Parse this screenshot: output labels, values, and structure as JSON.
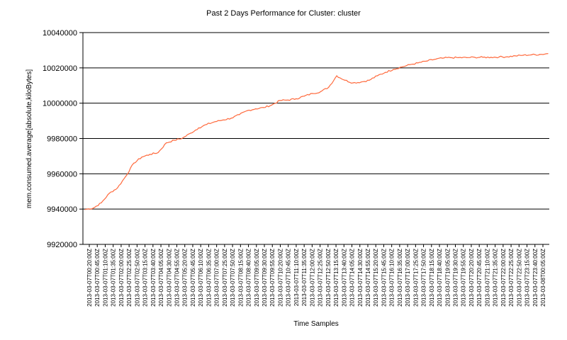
{
  "chart_data": {
    "type": "line",
    "title": "Past 2 Days Performance for Cluster: cluster",
    "xlabel": "Time Samples",
    "ylabel": "mem.consumed.average[absolute,kiloBytes]",
    "ylim": [
      9920000,
      10040000
    ],
    "yticks": [
      9920000,
      9940000,
      9960000,
      9980000,
      10000000,
      10020000,
      10040000
    ],
    "ytick_labels": [
      "9920000",
      "9940000",
      "9960000",
      "9980000",
      "10000000",
      "10020000",
      "10040000"
    ],
    "grid": true,
    "series_color": "#ff6a3d",
    "xtick_labels": [
      "2013-03-07T00:20:00Z",
      "2013-03-07T00:45:00Z",
      "2013-03-07T01:10:00Z",
      "2013-03-07T01:35:00Z",
      "2013-03-07T02:00:00Z",
      "2013-03-07T02:25:00Z",
      "2013-03-07T02:50:00Z",
      "2013-03-07T03:15:00Z",
      "2013-03-07T03:40:00Z",
      "2013-03-07T04:05:00Z",
      "2013-03-07T04:30:00Z",
      "2013-03-07T04:55:00Z",
      "2013-03-07T05:20:00Z",
      "2013-03-07T05:45:00Z",
      "2013-03-07T06:10:00Z",
      "2013-03-07T06:35:00Z",
      "2013-03-07T07:00:00Z",
      "2013-03-07T07:25:00Z",
      "2013-03-07T07:50:00Z",
      "2013-03-07T08:15:00Z",
      "2013-03-07T08:40:00Z",
      "2013-03-07T09:05:00Z",
      "2013-03-07T09:30:00Z",
      "2013-03-07T09:55:00Z",
      "2013-03-07T10:20:00Z",
      "2013-03-07T10:45:00Z",
      "2013-03-07T11:10:00Z",
      "2013-03-07T11:35:00Z",
      "2013-03-07T12:00:00Z",
      "2013-03-07T12:25:00Z",
      "2013-03-07T12:50:00Z",
      "2013-03-07T13:15:00Z",
      "2013-03-07T13:40:00Z",
      "2013-03-07T14:05:00Z",
      "2013-03-07T14:30:00Z",
      "2013-03-07T14:55:00Z",
      "2013-03-07T15:20:00Z",
      "2013-03-07T15:45:00Z",
      "2013-03-07T16:10:00Z",
      "2013-03-07T16:35:00Z",
      "2013-03-07T17:00:00Z",
      "2013-03-07T17:25:00Z",
      "2013-03-07T17:50:00Z",
      "2013-03-07T18:15:00Z",
      "2013-03-07T18:40:00Z",
      "2013-03-07T19:05:00Z",
      "2013-03-07T19:30:00Z",
      "2013-03-07T19:55:00Z",
      "2013-03-07T20:20:00Z",
      "2013-03-07T20:45:00Z",
      "2013-03-07T21:10:00Z",
      "2013-03-07T21:35:00Z",
      "2013-03-07T22:00:00Z",
      "2013-03-07T22:25:00Z",
      "2013-03-07T22:50:00Z",
      "2013-03-07T23:15:00Z",
      "2013-03-07T23:40:00Z",
      "2013-03-08T00:05:00Z"
    ],
    "series": [
      {
        "values": [
          9939800,
          9940500,
          9943500,
          9949000,
          9952000,
          9958500,
          9966000,
          9969500,
          9971000,
          9972000,
          9977500,
          9979000,
          9980200,
          9983000,
          9986000,
          9988000,
          9989500,
          9990500,
          9991500,
          9993500,
          9995800,
          9996800,
          9997500,
          9999000,
          10001500,
          10001800,
          10002500,
          10004000,
          10005500,
          10006500,
          10009000,
          10015500,
          10013000,
          10011500,
          10012000,
          10013000,
          10015500,
          10017500,
          10019200,
          10020500,
          10021800,
          10022800,
          10023800,
          10024800,
          10025500,
          10025800,
          10025800,
          10025800,
          10026000,
          10026000,
          10026000,
          10026200,
          10026300,
          10026800,
          10027200,
          10027400,
          10027600,
          10028100
        ]
      }
    ]
  }
}
